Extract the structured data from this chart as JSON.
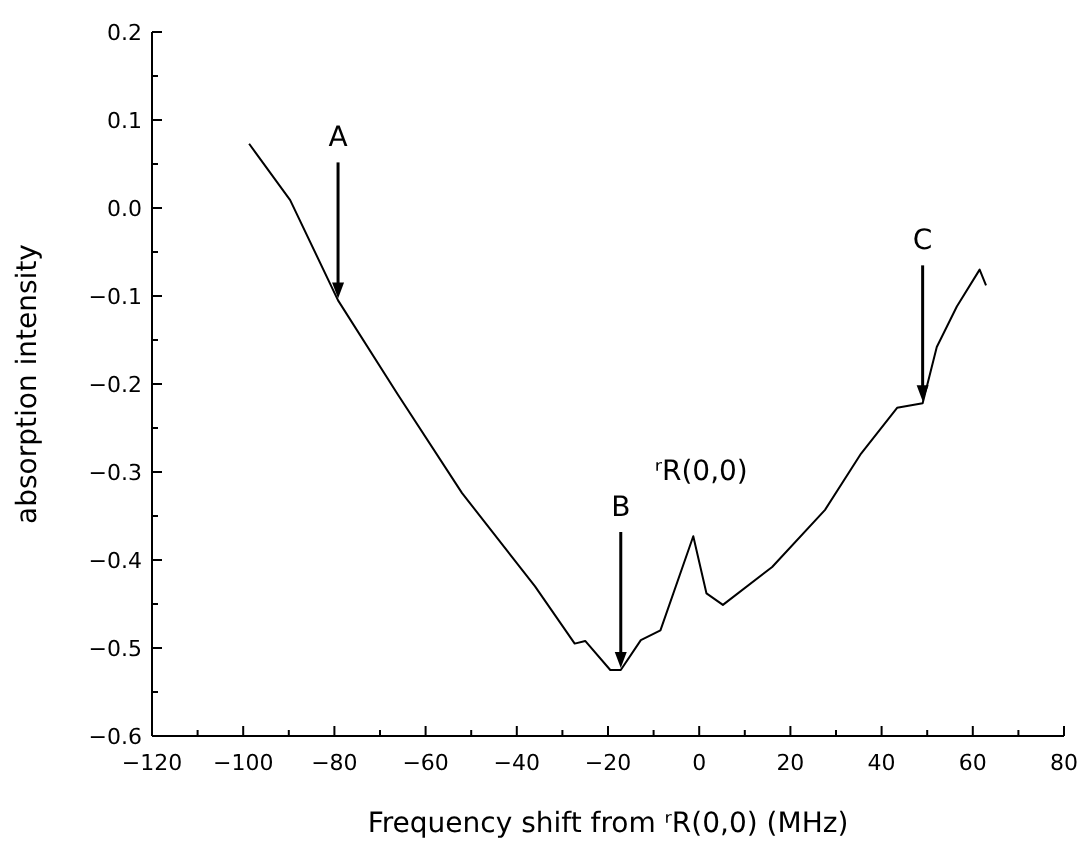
{
  "chart_data": {
    "type": "line",
    "xlabel": "Frequency shift from ʳR(0,0) (MHz)",
    "ylabel": "absorption intensity",
    "xlim": [
      -120,
      80
    ],
    "ylim": [
      -0.6,
      0.2
    ],
    "xticks": [
      {
        "value": -120,
        "label": "−120"
      },
      {
        "value": -110,
        "label": null
      },
      {
        "value": -100,
        "label": "−100"
      },
      {
        "value": -90,
        "label": null
      },
      {
        "value": -80,
        "label": "−80"
      },
      {
        "value": -70,
        "label": null
      },
      {
        "value": -60,
        "label": "−60"
      },
      {
        "value": -50,
        "label": null
      },
      {
        "value": -40,
        "label": "−40"
      },
      {
        "value": -30,
        "label": null
      },
      {
        "value": -20,
        "label": "−20"
      },
      {
        "value": -10,
        "label": null
      },
      0,
      {
        "value": 10,
        "label": null
      },
      20,
      {
        "value": 30,
        "label": null
      },
      40,
      {
        "value": 50,
        "label": null
      },
      60,
      {
        "value": 70,
        "label": null
      },
      80
    ],
    "yticks": [
      {
        "value": -0.6,
        "label": "−0.6"
      },
      {
        "value": -0.55,
        "label": null
      },
      {
        "value": -0.5,
        "label": "−0.5"
      },
      {
        "value": -0.45,
        "label": null
      },
      {
        "value": -0.4,
        "label": "−0.4"
      },
      {
        "value": -0.35,
        "label": null
      },
      {
        "value": -0.3,
        "label": "−0.3"
      },
      {
        "value": -0.25,
        "label": null
      },
      {
        "value": -0.2,
        "label": "−0.2"
      },
      {
        "value": -0.15,
        "label": null
      },
      {
        "value": -0.1,
        "label": "−0.1"
      },
      {
        "value": -0.05,
        "label": null
      },
      {
        "value": 0,
        "label": "0.0"
      },
      {
        "value": 0.05,
        "label": null
      },
      {
        "value": 0.1,
        "label": "0.1"
      },
      {
        "value": 0.15,
        "label": null
      },
      {
        "value": 0.2,
        "label": "0.2"
      }
    ],
    "series": [
      {
        "color": "#000000",
        "x": [
          -98.7,
          -89.7,
          -79.2,
          -66.2,
          -52,
          -36,
          -27.3,
          -25,
          -19.5,
          -17.2,
          -12.8,
          -8.5,
          -1.3,
          1.6,
          5.2,
          16,
          27.6,
          35.5,
          43.4,
          49,
          52.1,
          56.5,
          61.5,
          62.9
        ],
        "values": [
          0.073,
          0.009,
          -0.105,
          -0.211,
          -0.324,
          -0.43,
          -0.495,
          -0.492,
          -0.525,
          -0.525,
          -0.491,
          -0.48,
          -0.373,
          -0.438,
          -0.451,
          -0.408,
          -0.343,
          -0.279,
          -0.227,
          -0.222,
          -0.158,
          -0.112,
          -0.07,
          -0.088
        ]
      }
    ],
    "annotations": [
      {
        "text": "A",
        "x": -79.2,
        "y": -0.105
      },
      {
        "text": "B",
        "x": -17.2,
        "y": -0.525
      },
      {
        "text": "C",
        "x": 49,
        "y": -0.222
      },
      {
        "text": "ʳR(0,0)",
        "x": -1.3,
        "y": -0.373
      }
    ],
    "grid": false,
    "marker": "none",
    "line_style": "solid"
  }
}
